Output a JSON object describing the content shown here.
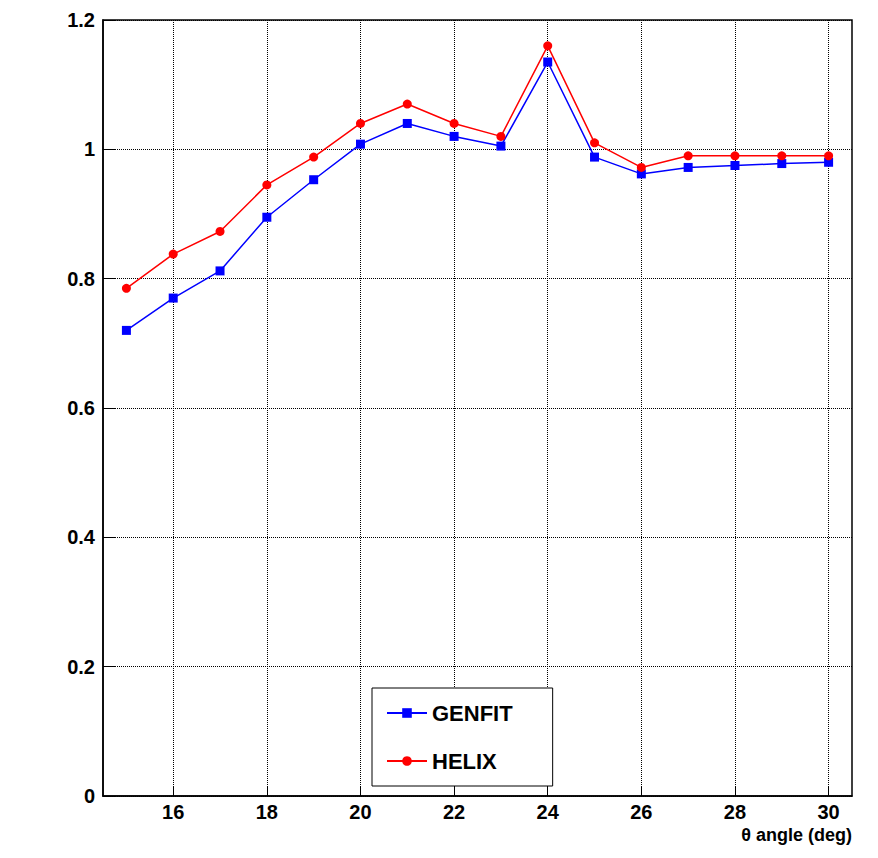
{
  "chart_data": {
    "type": "line",
    "x_label": "θ angle (deg)",
    "x": [
      15,
      16,
      17,
      18,
      19,
      20,
      21,
      22,
      23,
      24,
      25,
      26,
      27,
      28,
      29,
      30
    ],
    "series": [
      {
        "name": "GENFIT",
        "color": "#0000ff",
        "marker": "square",
        "line_style": "solid",
        "values": [
          0.72,
          0.77,
          0.812,
          0.895,
          0.953,
          1.008,
          1.04,
          1.02,
          1.005,
          1.135,
          0.988,
          0.962,
          0.972,
          0.975,
          0.978,
          0.98
        ]
      },
      {
        "name": "HELIX",
        "color": "#ff0000",
        "marker": "circle",
        "line_style": "solid",
        "values": [
          0.785,
          0.838,
          0.873,
          0.945,
          0.988,
          1.04,
          1.07,
          1.04,
          1.02,
          1.16,
          1.01,
          0.972,
          0.99,
          0.99,
          0.99,
          0.99
        ]
      }
    ],
    "xlim": [
      14.5,
      30.5
    ],
    "xticks": [
      16,
      18,
      20,
      22,
      24,
      26,
      28,
      30
    ],
    "ylim": [
      0,
      1.2
    ],
    "yticks": [
      0,
      0.2,
      0.4,
      0.6,
      0.8,
      1,
      1.2
    ],
    "grid": true,
    "legend": "bottom"
  }
}
